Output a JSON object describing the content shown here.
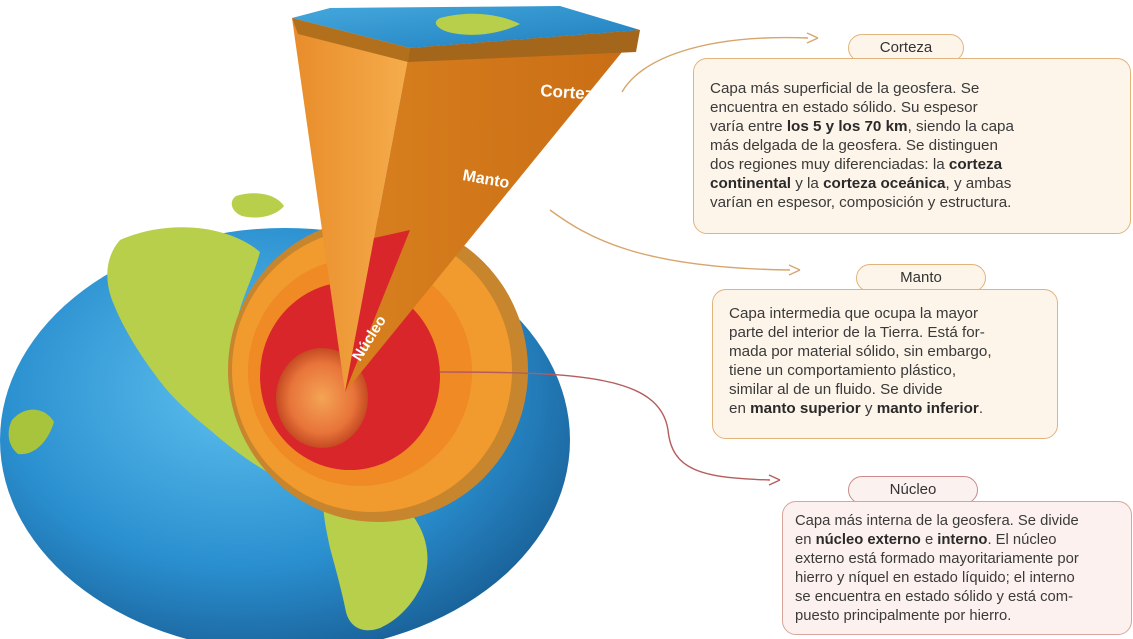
{
  "figure_labels": {
    "corteza": "Corteza",
    "manto": "Manto",
    "nucleo": "Núcleo"
  },
  "corteza": {
    "title": "Corteza",
    "lines": [
      [
        {
          "t": "Capa más superficial de la geosfera. Se"
        }
      ],
      [
        {
          "t": "encuentra en estado sólido. Su espesor"
        }
      ],
      [
        {
          "t": "varía entre "
        },
        {
          "t": "los 5 y los 70 km",
          "b": true
        },
        {
          "t": ", siendo la capa"
        }
      ],
      [
        {
          "t": "más delgada de la geosfera. Se distinguen"
        }
      ],
      [
        {
          "t": "dos regiones muy diferenciadas: la "
        },
        {
          "t": "corteza",
          "b": true
        }
      ],
      [
        {
          "t": "continental",
          "b": true
        },
        {
          "t": " y la "
        },
        {
          "t": "corteza oceánica",
          "b": true
        },
        {
          "t": ", y ambas"
        }
      ],
      [
        {
          "t": "varían en espesor, composición y estructura."
        }
      ]
    ]
  },
  "manto": {
    "title": "Manto",
    "lines": [
      [
        {
          "t": "Capa intermedia que ocupa la mayor"
        }
      ],
      [
        {
          "t": "parte del interior de la Tierra. Está for-"
        }
      ],
      [
        {
          "t": "mada por material sólido, sin embargo,"
        }
      ],
      [
        {
          "t": "tiene un comportamiento plástico,"
        }
      ],
      [
        {
          "t": "similar al de un fluido. Se divide"
        }
      ],
      [
        {
          "t": "en "
        },
        {
          "t": "manto superior",
          "b": true
        },
        {
          "t": " y "
        },
        {
          "t": "manto inferior",
          "b": true
        },
        {
          "t": "."
        }
      ]
    ]
  },
  "nucleo": {
    "title": "Núcleo",
    "lines": [
      [
        {
          "t": "Capa más interna de la geosfera. Se divide"
        }
      ],
      [
        {
          "t": "en "
        },
        {
          "t": "núcleo externo",
          "b": true
        },
        {
          "t": " e "
        },
        {
          "t": "interno",
          "b": true
        },
        {
          "t": ". El núcleo"
        }
      ],
      [
        {
          "t": "externo está formado mayoritariamente por"
        }
      ],
      [
        {
          "t": "hierro y níquel en estado líquido; el interno"
        }
      ],
      [
        {
          "t": "se encuentra en estado sólido y está com-"
        }
      ],
      [
        {
          "t": "puesto principalmente por hierro."
        }
      ]
    ]
  },
  "colors": {
    "ocean": "#2a8fcf",
    "land": "#b7cf4a",
    "crust": "#d9892f",
    "mantle": "#f19a2e",
    "outer_core": "#d9262b",
    "inner_core": "#e8743a",
    "corteza_border": "#e0b47c",
    "nucleo_border": "#c98b8b"
  }
}
